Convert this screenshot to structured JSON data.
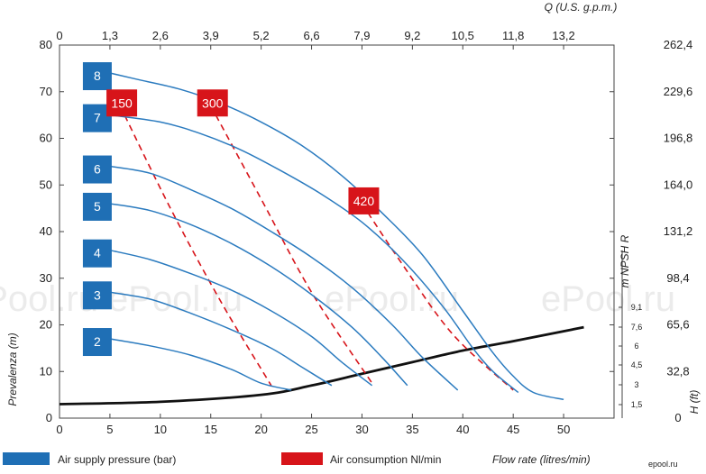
{
  "chart_data": {
    "type": "line",
    "x_axis": {
      "label": "Flow rate (litres/min)",
      "range": [
        0,
        55
      ],
      "ticks": [
        "0",
        "5",
        "10",
        "15",
        "20",
        "25",
        "30",
        "35",
        "40",
        "45",
        "50"
      ]
    },
    "x_axis_top": {
      "label": "Q (U.S. g.p.m.)",
      "ticks": [
        "0",
        "1,3",
        "2,6",
        "3,9",
        "5,2",
        "6,6",
        "7,9",
        "9,2",
        "10,5",
        "11,8",
        "13,2"
      ]
    },
    "y_axis": {
      "label": "Prevalenza (m)",
      "range": [
        0,
        80
      ],
      "ticks": [
        "0",
        "10",
        "20",
        "30",
        "40",
        "50",
        "60",
        "70",
        "80"
      ]
    },
    "y_axis_right": {
      "label": "H (ft)",
      "ticks": [
        "0",
        "32,8",
        "65,6",
        "98,4",
        "131,2",
        "164,0",
        "196,8",
        "229,6",
        "262,4"
      ]
    },
    "npsh_axis": {
      "label": "m NPSH R",
      "ticks": [
        "1,5",
        "3",
        "4,5",
        "6",
        "7,6",
        "9,1"
      ]
    },
    "pressure_series": [
      {
        "name": "8",
        "x": [
          5,
          8,
          12,
          16,
          20,
          24,
          28,
          32,
          36,
          40,
          43,
          45,
          47,
          50
        ],
        "y": [
          74,
          72.5,
          70.5,
          67.5,
          63.5,
          58.5,
          52,
          44,
          35,
          23,
          14,
          9,
          5.5,
          4
        ]
      },
      {
        "name": "7",
        "x": [
          5,
          10,
          14,
          18,
          22,
          26,
          30,
          34,
          38,
          41,
          43,
          45.5
        ],
        "y": [
          65,
          63.5,
          61,
          57.5,
          53,
          48,
          42,
          34,
          24,
          15,
          10,
          5.5
        ]
      },
      {
        "name": "6",
        "x": [
          5,
          9,
          13,
          17,
          21,
          25,
          29,
          33,
          36,
          39.5
        ],
        "y": [
          54,
          52.5,
          49,
          45,
          40,
          34.5,
          28,
          20,
          13,
          6
        ]
      },
      {
        "name": "5",
        "x": [
          5,
          9,
          13,
          17,
          21,
          25,
          29,
          32,
          34.5
        ],
        "y": [
          46,
          44.5,
          41.5,
          37.5,
          32.5,
          26.5,
          19.5,
          13,
          7
        ]
      },
      {
        "name": "4",
        "x": [
          5,
          9,
          13,
          17,
          21,
          25,
          28,
          31
        ],
        "y": [
          36,
          34,
          31,
          27.5,
          23,
          17.5,
          12,
          7
        ]
      },
      {
        "name": "3",
        "x": [
          5,
          9,
          13,
          17,
          21,
          24,
          27
        ],
        "y": [
          27,
          25.5,
          22.5,
          19,
          15,
          11,
          7
        ]
      },
      {
        "name": "2",
        "x": [
          5,
          9,
          13,
          17,
          20,
          23
        ],
        "y": [
          17,
          15.5,
          13.5,
          10.5,
          7.5,
          6
        ]
      }
    ],
    "air_consumption_series": [
      {
        "name": "150",
        "x": [
          6,
          11,
          16,
          21
        ],
        "y": [
          67,
          45,
          25,
          7
        ]
      },
      {
        "name": "300",
        "x": [
          15,
          20,
          25,
          31
        ],
        "y": [
          67,
          47,
          27,
          7.5
        ]
      },
      {
        "name": "420",
        "x": [
          30,
          34,
          39,
          45
        ],
        "y": [
          46,
          33,
          18,
          6
        ]
      }
    ],
    "npsh_curve": {
      "x": [
        0,
        10,
        20,
        25,
        30,
        35,
        40,
        45,
        52
      ],
      "y": [
        3,
        3.5,
        5,
        7,
        9.5,
        12,
        14.5,
        16.5,
        19.5
      ]
    },
    "legend": {
      "position": "bottom",
      "items": [
        {
          "label": "Air supply pressure (bar)",
          "color": "#1f6fb5"
        },
        {
          "label": "Air consumption Nl/min",
          "color": "#d7141a"
        }
      ]
    },
    "watermark": "ePool.ru",
    "footer_logo": "epool.ru",
    "colors": {
      "pressure": "#2b7bbf",
      "air": "#d7141a",
      "npsh": "#111111"
    }
  }
}
